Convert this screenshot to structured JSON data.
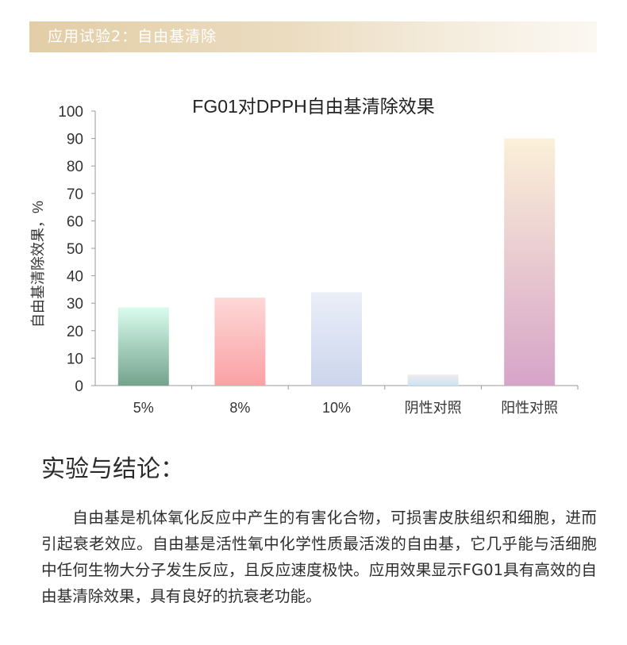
{
  "header": {
    "title": "应用试验2：自由基清除"
  },
  "chart_data": {
    "type": "bar",
    "title": "FG01对DPPH自由基清除效果",
    "xlabel": "",
    "ylabel": "自由基清除效果，%",
    "ylim": [
      0,
      100
    ],
    "yticks": [
      0,
      10,
      20,
      30,
      40,
      50,
      60,
      70,
      80,
      90,
      100
    ],
    "categories": [
      "5%",
      "8%",
      "10%",
      "阴性对照",
      "阳性对照"
    ],
    "values": [
      28.5,
      32,
      34,
      4,
      90
    ],
    "colors": [
      [
        "#d9fcee",
        "#74a38e"
      ],
      [
        "#fdd7d7",
        "#fba1a4"
      ],
      [
        "#eaeef8",
        "#ccd6ec"
      ],
      [
        "#f2ebec",
        "#c9e4f4"
      ],
      [
        "#fbf0d8",
        "#d6a4c8"
      ]
    ],
    "grid": false,
    "legend": "none"
  },
  "conclusion": {
    "title": "实验与结论：",
    "text": "自由基是机体氧化反应中产生的有害化合物，可损害皮肤组织和细胞，进而引起衰老效应。自由基是活性氧中化学性质最活泼的自由基，它几乎能与活细胞中任何生物大分子发生反应，且反应速度极快。应用效果显示FG01具有高效的自由基清除效果，具有良好的抗衰老功能。"
  }
}
